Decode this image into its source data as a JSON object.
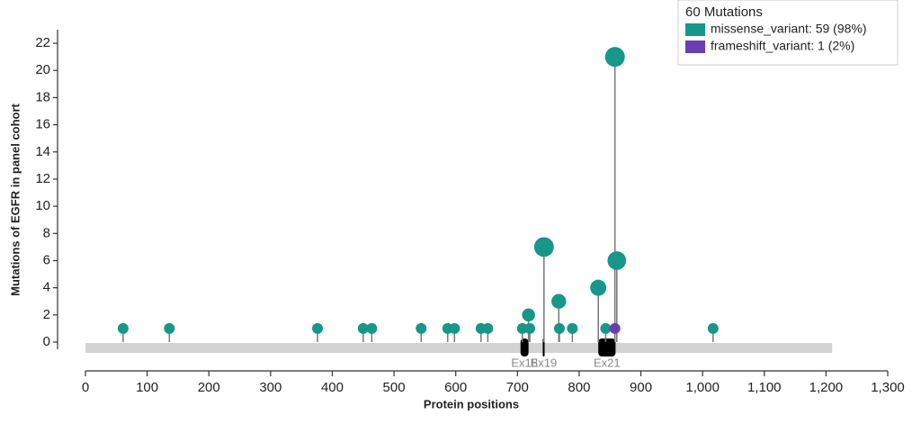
{
  "chart_data": {
    "type": "lollipop",
    "y_label": "Mutations of EGFR in panel cohort",
    "x_label": "Protein positions",
    "legend_title": "60 Mutations",
    "legend_position": "top-right",
    "series": [
      {
        "name": "missense_variant: 59 (98%)",
        "color": "#16978a",
        "x": [
          61,
          136,
          376,
          450,
          464,
          544,
          587,
          598,
          641,
          652,
          708,
          718,
          720,
          743,
          767,
          768,
          789,
          831,
          843,
          858,
          861,
          1017
        ],
        "values": [
          1,
          1,
          1,
          1,
          1,
          1,
          1,
          1,
          1,
          1,
          1,
          2,
          1,
          7,
          3,
          1,
          1,
          4,
          1,
          21,
          6,
          1
        ]
      },
      {
        "name": "frameshift_variant: 1 (2%)",
        "color": "#6a3db3",
        "x": [
          858
        ],
        "values": [
          1
        ]
      }
    ],
    "protein_range": [
      0,
      1210
    ],
    "exons": [
      {
        "label": "Ex18",
        "start": 705,
        "end": 718
      },
      {
        "label": "Ex19",
        "start": 741,
        "end": 744
      },
      {
        "label": "Ex21",
        "start": 831,
        "end": 859
      }
    ],
    "xlim": [
      0,
      1300
    ],
    "xticks": [
      0,
      100,
      200,
      300,
      400,
      500,
      600,
      700,
      800,
      900,
      {
        "value": 1000,
        "label": "1,000"
      },
      {
        "value": 1100,
        "label": "1,100"
      },
      {
        "value": 1200,
        "label": "1,200"
      },
      {
        "value": 1300,
        "label": "1,300"
      }
    ],
    "ylim": [
      0,
      23
    ],
    "yticks": [
      0,
      2,
      4,
      6,
      8,
      10,
      12,
      14,
      16,
      18,
      20,
      22
    ]
  }
}
